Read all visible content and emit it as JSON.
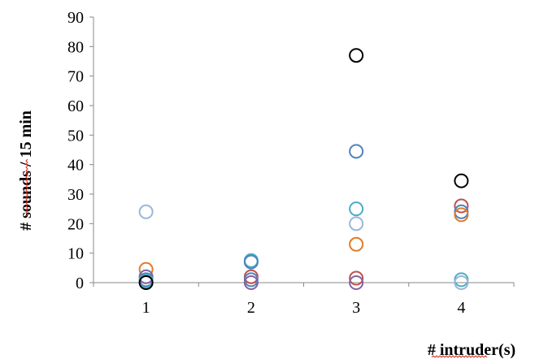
{
  "chart_data": {
    "type": "scatter",
    "title": "",
    "xlabel": "# intruder(s)",
    "ylabel": "# sounds / 15 min",
    "x_ticks": [
      1,
      2,
      3,
      4
    ],
    "y_ticks": [
      0,
      10,
      20,
      30,
      40,
      50,
      60,
      70,
      80,
      90
    ],
    "xlim": [
      0.5,
      4.5
    ],
    "ylim": [
      0,
      90
    ],
    "grid": false,
    "legend": "none",
    "marker": "open-circle",
    "points": [
      {
        "x": 1,
        "y": 24,
        "color": "#9bb7d9"
      },
      {
        "x": 1,
        "y": 4.5,
        "color": "#e07b2a"
      },
      {
        "x": 1,
        "y": 2,
        "color": "#8064a2"
      },
      {
        "x": 1,
        "y": 1,
        "color": "#4f81bd"
      },
      {
        "x": 1,
        "y": 0.5,
        "color": "#4bacc6"
      },
      {
        "x": 1,
        "y": 0,
        "color": "#000000"
      },
      {
        "x": 2,
        "y": 7.5,
        "color": "#4bacc6"
      },
      {
        "x": 2,
        "y": 7,
        "color": "#4f81bd"
      },
      {
        "x": 2,
        "y": 2,
        "color": "#c0504d"
      },
      {
        "x": 2,
        "y": 1,
        "color": "#4f81bd"
      },
      {
        "x": 2,
        "y": 0,
        "color": "#8064a2"
      },
      {
        "x": 3,
        "y": 77,
        "color": "#000000"
      },
      {
        "x": 3,
        "y": 44.5,
        "color": "#4f81bd"
      },
      {
        "x": 3,
        "y": 25,
        "color": "#4bacc6"
      },
      {
        "x": 3,
        "y": 20,
        "color": "#9bb7d9"
      },
      {
        "x": 3,
        "y": 13,
        "color": "#e07b2a"
      },
      {
        "x": 3,
        "y": 1.5,
        "color": "#c0504d"
      },
      {
        "x": 3,
        "y": 0,
        "color": "#8064a2"
      },
      {
        "x": 4,
        "y": 34.5,
        "color": "#000000"
      },
      {
        "x": 4,
        "y": 26,
        "color": "#c0504d"
      },
      {
        "x": 4,
        "y": 24,
        "color": "#4f81bd"
      },
      {
        "x": 4,
        "y": 23,
        "color": "#e07b2a"
      },
      {
        "x": 4,
        "y": 1,
        "color": "#4bacc6"
      },
      {
        "x": 4,
        "y": 0,
        "color": "#9bb7d9"
      }
    ],
    "colors": {
      "axis": "#888888",
      "text": "#000000",
      "spell_underline": "#d9342b"
    }
  }
}
